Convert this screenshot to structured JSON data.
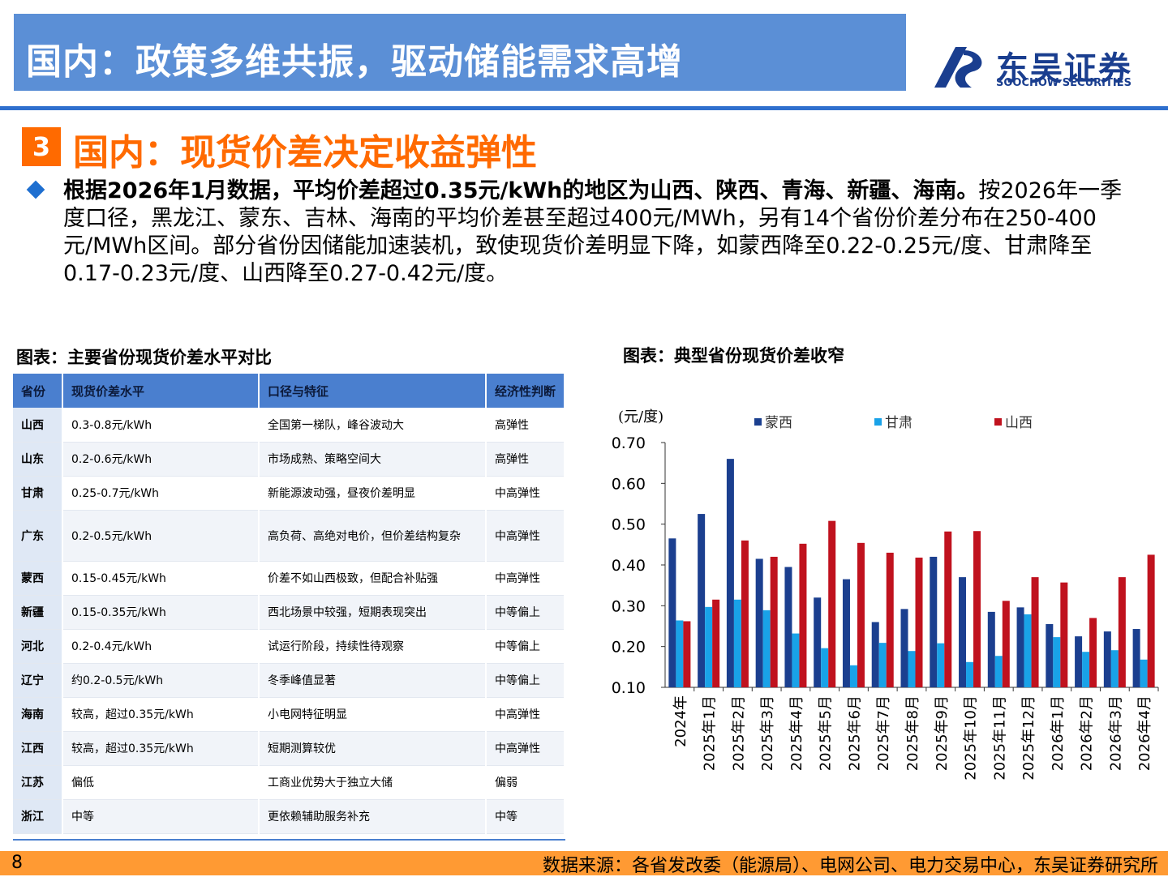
{
  "header": {
    "title": "国内：政策多维共振，驱动储能需求高增",
    "logo_cn": "东吴证券",
    "logo_en": "SOOCHOW SECURITIES"
  },
  "section": {
    "number": "3",
    "title": "国内：现货价差决定收益弹性"
  },
  "paragraph": {
    "bold": "根据2026年1月数据，平均价差超过0.35元/kWh的地区为山西、陕西、青海、新疆、海南。",
    "rest": "按2026年一季度口径，黑龙江、蒙东、吉林、海南的平均价差甚至超过400元/MWh，另有14个省份价差分布在250-400元/MWh区间。部分省份因储能加速装机，致使现货价差明显下降，如蒙西降至0.22-0.25元/度、甘肃降至0.17-0.23元/度、山西降至0.27-0.42元/度。"
  },
  "table": {
    "caption": "图表：主要省份现货价差水平对比",
    "headers": [
      "省份",
      "现货价差水平",
      "口径与特征",
      "经济性判断"
    ],
    "rows": [
      [
        "山西",
        "0.3-0.8元/kWh",
        "全国第一梯队，峰谷波动大",
        "高弹性"
      ],
      [
        "山东",
        "0.2-0.6元/kWh",
        "市场成熟、策略空间大",
        "高弹性"
      ],
      [
        "甘肃",
        "0.25-0.7元/kWh",
        "新能源波动强，昼夜价差明显",
        "中高弹性"
      ],
      [
        "广东",
        "0.2-0.5元/kWh",
        "高负荷、高绝对电价，但价差结构复杂",
        "中高弹性"
      ],
      [
        "蒙西",
        "0.15-0.45元/kWh",
        "价差不如山西极致，但配合补贴强",
        "中高弹性"
      ],
      [
        "新疆",
        "0.15-0.35元/kWh",
        "西北场景中较强，短期表现突出",
        "中等偏上"
      ],
      [
        "河北",
        "0.2-0.4元/kWh",
        "试运行阶段，持续性待观察",
        "中等偏上"
      ],
      [
        "辽宁",
        "约0.2-0.5元/kWh",
        "冬季峰值显著",
        "中等偏上"
      ],
      [
        "海南",
        "较高，超过0.35元/kWh",
        "小电网特征明显",
        "中高弹性"
      ],
      [
        "江西",
        "较高，超过0.35元/kWh",
        "短期测算较优",
        "中高弹性"
      ],
      [
        "江苏",
        "偏低",
        "工商业优势大于独立大储",
        "偏弱"
      ],
      [
        "浙江",
        "中等",
        "更依赖辅助服务补充",
        "中等"
      ]
    ]
  },
  "chart_data": {
    "type": "bar",
    "title": "图表：典型省份现货价差收窄",
    "ylabel": "(元/度)",
    "ylim": [
      0.1,
      0.7
    ],
    "yticks": [
      "0.70",
      "0.60",
      "0.50",
      "0.40",
      "0.30",
      "0.20",
      "0.10"
    ],
    "legend_position": "top",
    "categories": [
      "2024年",
      "2025年1月",
      "2025年2月",
      "2025年3月",
      "2025年4月",
      "2025年5月",
      "2025年6月",
      "2025年7月",
      "2025年8月",
      "2025年9月",
      "2025年10月",
      "2025年11月",
      "2025年12月",
      "2026年1月",
      "2026年2月",
      "2026年3月",
      "2026年4月"
    ],
    "series": [
      {
        "name": "蒙西",
        "color": "#1b3f8f",
        "values": [
          0.465,
          0.525,
          0.66,
          0.415,
          0.395,
          0.32,
          0.365,
          0.26,
          0.292,
          0.42,
          0.37,
          0.285,
          0.296,
          0.255,
          0.225,
          0.237,
          0.243
        ]
      },
      {
        "name": "甘肃",
        "color": "#19a2e8",
        "values": [
          0.264,
          0.297,
          0.315,
          0.289,
          0.232,
          0.196,
          0.154,
          0.209,
          0.189,
          0.208,
          0.162,
          0.177,
          0.279,
          0.223,
          0.187,
          0.191,
          0.168
        ]
      },
      {
        "name": "山西",
        "color": "#c0121e",
        "values": [
          0.262,
          0.315,
          0.46,
          0.42,
          0.452,
          0.508,
          0.454,
          0.43,
          0.418,
          0.482,
          0.483,
          0.312,
          0.37,
          0.357,
          0.27,
          0.37,
          0.425
        ]
      }
    ]
  },
  "footer": {
    "page": "8",
    "source": "数据来源：各省发改委（能源局）、电网公司、电力交易中心，东吴证券研究所"
  }
}
